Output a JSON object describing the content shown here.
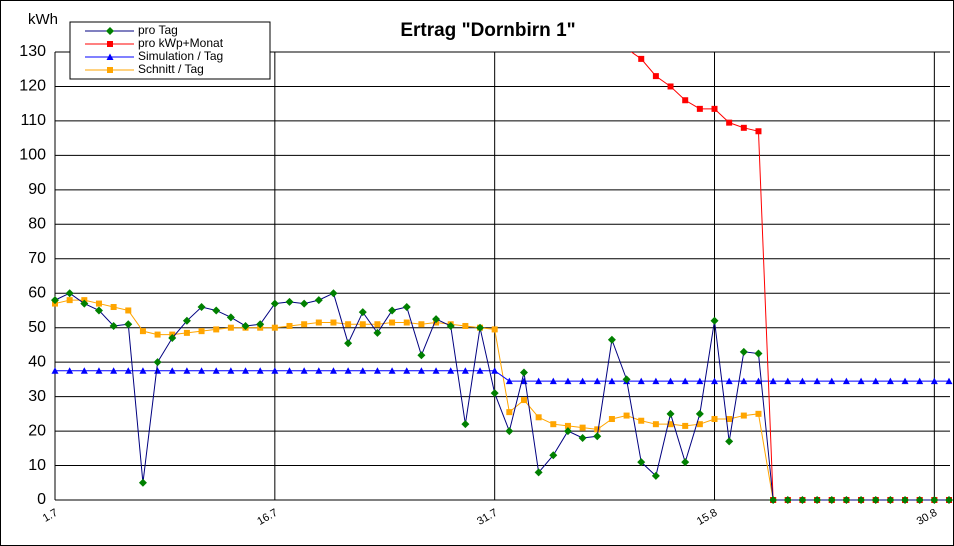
{
  "chart_data": {
    "type": "line",
    "title": "Ertrag \"Dornbirn 1\"",
    "y_label": "kWh",
    "categories": [
      "1.7",
      null,
      null,
      null,
      null,
      null,
      null,
      null,
      null,
      null,
      null,
      null,
      null,
      null,
      null,
      "16.7",
      null,
      null,
      null,
      null,
      null,
      null,
      null,
      null,
      null,
      null,
      null,
      null,
      null,
      null,
      "31.7",
      null,
      null,
      null,
      null,
      null,
      null,
      null,
      null,
      null,
      null,
      null,
      null,
      null,
      null,
      "15.8",
      null,
      null,
      null,
      null,
      null,
      null,
      null,
      null,
      null,
      null,
      null,
      null,
      null,
      null,
      "30.8",
      null
    ],
    "series": [
      {
        "name": "pro Tag",
        "color": "#000080",
        "marker_color": "#008000",
        "marker": "diamond",
        "values": [
          58,
          60,
          57,
          55,
          50.5,
          51,
          5,
          40,
          47,
          52,
          56,
          55,
          53,
          50.5,
          51,
          57,
          57.5,
          57,
          58,
          60,
          45.5,
          54.5,
          48.5,
          55,
          56,
          42,
          52.5,
          50.5,
          22,
          50,
          31,
          20,
          37,
          8,
          13,
          20,
          18,
          18.5,
          46.5,
          35,
          11,
          7,
          25,
          11,
          25,
          52,
          17,
          43,
          42.5,
          0,
          0,
          0,
          0,
          0,
          0,
          0,
          0,
          0,
          0,
          0,
          0,
          0
        ]
      },
      {
        "name": "pro kWp+Monat",
        "color": "#ff0000",
        "marker_color": "#ff0000",
        "marker": "square",
        "values": [
          null,
          null,
          null,
          null,
          null,
          null,
          null,
          null,
          null,
          null,
          null,
          null,
          null,
          null,
          null,
          null,
          null,
          null,
          null,
          null,
          null,
          null,
          null,
          null,
          null,
          null,
          null,
          null,
          null,
          null,
          null,
          null,
          null,
          null,
          null,
          null,
          null,
          null,
          null,
          131,
          128,
          123,
          120,
          116,
          113.5,
          113.5,
          109.5,
          108,
          107,
          0,
          0,
          0,
          0,
          0,
          0,
          0,
          0,
          0,
          0,
          0,
          0,
          0
        ]
      },
      {
        "name": "Simulation / Tag",
        "color": "#0000ff",
        "marker_color": "#0000ff",
        "marker": "triangle",
        "values": [
          37.5,
          37.5,
          37.5,
          37.5,
          37.5,
          37.5,
          37.5,
          37.5,
          37.5,
          37.5,
          37.5,
          37.5,
          37.5,
          37.5,
          37.5,
          37.5,
          37.5,
          37.5,
          37.5,
          37.5,
          37.5,
          37.5,
          37.5,
          37.5,
          37.5,
          37.5,
          37.5,
          37.5,
          37.5,
          37.5,
          37.5,
          34.5,
          34.5,
          34.5,
          34.5,
          34.5,
          34.5,
          34.5,
          34.5,
          34.5,
          34.5,
          34.5,
          34.5,
          34.5,
          34.5,
          34.5,
          34.5,
          34.5,
          34.5,
          34.5,
          34.5,
          34.5,
          34.5,
          34.5,
          34.5,
          34.5,
          34.5,
          34.5,
          34.5,
          34.5,
          34.5,
          34.5
        ]
      },
      {
        "name": "Schnitt / Tag",
        "color": "#ffa500",
        "marker_color": "#ffa500",
        "marker": "square",
        "values": [
          57,
          58,
          58,
          57,
          56,
          55,
          49,
          48,
          48,
          48.5,
          49,
          49.5,
          50,
          50,
          50,
          50,
          50.5,
          51,
          51.5,
          51.5,
          51,
          51,
          51,
          51.5,
          51.5,
          51,
          51.5,
          51,
          50.5,
          50,
          49.5,
          25.5,
          29,
          24,
          22,
          21.5,
          21,
          20.5,
          23.5,
          24.5,
          23,
          22,
          22,
          21.5,
          22,
          23.5,
          23.5,
          24.5,
          25,
          0,
          0,
          0,
          0,
          0,
          0,
          0,
          0,
          0,
          0,
          0,
          0,
          0
        ]
      }
    ],
    "ylim": [
      0,
      130
    ],
    "yticks": [
      0,
      10,
      20,
      30,
      40,
      50,
      60,
      70,
      80,
      90,
      100,
      110,
      120,
      130
    ],
    "grid": true,
    "legend": "top-left"
  }
}
